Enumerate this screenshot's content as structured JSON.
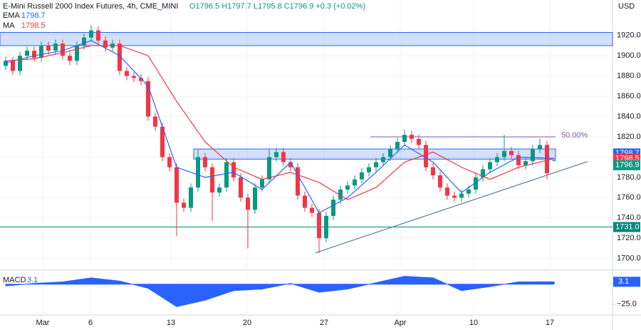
{
  "chart_data": [
    {
      "type": "candlestick",
      "title": "E-Mini Russell 2000 Index Futures, 4h, CME_MINI",
      "subtitle": "O1796.5 H1797.7 L1795.8 C1796.9 +0.3 (+0.02%)",
      "unit": "USD",
      "up_color": "#089981",
      "down_color": "#f23645",
      "x": [
        0,
        1,
        2,
        3,
        4,
        5,
        6,
        7,
        8,
        9,
        10,
        11,
        12,
        13,
        14,
        15,
        16,
        17,
        18,
        19,
        20,
        21,
        22,
        23,
        24,
        25,
        26,
        27,
        28,
        29,
        30,
        31,
        32,
        33,
        34,
        35,
        36,
        37,
        38,
        39,
        40,
        41,
        42,
        43,
        44,
        45,
        46,
        47,
        48,
        49,
        50,
        51,
        52,
        53,
        54,
        55,
        56,
        57,
        58,
        59,
        60,
        61,
        62,
        63,
        64,
        65,
        66,
        67,
        68,
        69,
        70,
        71,
        72,
        73,
        74,
        75,
        76,
        77
      ],
      "open": [
        1890,
        1895,
        1885,
        1900,
        1905,
        1898,
        1910,
        1905,
        1912,
        1900,
        1895,
        1910,
        1918,
        1925,
        1915,
        1908,
        1912,
        1885,
        1880,
        1878,
        1875,
        1840,
        1830,
        1800,
        1790,
        1755,
        1750,
        1770,
        1800,
        1790,
        1765,
        1770,
        1795,
        1780,
        1760,
        1748,
        1770,
        1778,
        1800,
        1805,
        1795,
        1790,
        1762,
        1750,
        1745,
        1720,
        1742,
        1758,
        1768,
        1772,
        1778,
        1785,
        1790,
        1795,
        1800,
        1808,
        1815,
        1822,
        1818,
        1812,
        1790,
        1782,
        1770,
        1762,
        1760,
        1764,
        1768,
        1780,
        1788,
        1795,
        1800,
        1806,
        1802,
        1792,
        1796,
        1808,
        1812,
        1796.5
      ],
      "high": [
        1899,
        1899,
        1904,
        1909,
        1909,
        1914,
        1914,
        1916,
        1916,
        1904,
        1914,
        1922,
        1930,
        1929,
        1919,
        1916,
        1916,
        1889,
        1884,
        1882,
        1879,
        1844,
        1834,
        1804,
        1794,
        1759,
        1774,
        1808,
        1804,
        1794,
        1774,
        1799,
        1799,
        1784,
        1764,
        1774,
        1782,
        1808,
        1809,
        1809,
        1799,
        1794,
        1766,
        1754,
        1749,
        1746,
        1762,
        1772,
        1776,
        1782,
        1789,
        1794,
        1799,
        1804,
        1812,
        1819,
        1827,
        1826,
        1822,
        1816,
        1794,
        1786,
        1774,
        1766,
        1768,
        1772,
        1784,
        1792,
        1799,
        1804,
        1822,
        1810,
        1806,
        1800,
        1812,
        1818,
        1816,
        1797.7
      ],
      "low": [
        1886,
        1881,
        1881,
        1896,
        1894,
        1894,
        1901,
        1901,
        1896,
        1891,
        1891,
        1906,
        1914,
        1911,
        1904,
        1904,
        1881,
        1876,
        1874,
        1871,
        1836,
        1826,
        1796,
        1786,
        1722,
        1746,
        1746,
        1766,
        1786,
        1737,
        1761,
        1766,
        1776,
        1756,
        1710,
        1744,
        1766,
        1774,
        1796,
        1791,
        1786,
        1758,
        1746,
        1741,
        1705,
        1716,
        1738,
        1754,
        1764,
        1768,
        1774,
        1781,
        1786,
        1791,
        1796,
        1804,
        1811,
        1814,
        1808,
        1786,
        1778,
        1766,
        1758,
        1756,
        1756,
        1760,
        1764,
        1776,
        1784,
        1791,
        1796,
        1798,
        1788,
        1788,
        1792,
        1804,
        1778,
        1795.8
      ],
      "close": [
        1895,
        1885,
        1900,
        1905,
        1898,
        1910,
        1905,
        1912,
        1900,
        1895,
        1910,
        1918,
        1925,
        1915,
        1908,
        1912,
        1885,
        1880,
        1878,
        1875,
        1840,
        1830,
        1800,
        1790,
        1755,
        1750,
        1770,
        1800,
        1790,
        1765,
        1770,
        1795,
        1780,
        1760,
        1748,
        1770,
        1778,
        1800,
        1805,
        1795,
        1790,
        1762,
        1750,
        1745,
        1720,
        1742,
        1758,
        1768,
        1772,
        1778,
        1785,
        1790,
        1795,
        1800,
        1808,
        1815,
        1822,
        1818,
        1812,
        1790,
        1782,
        1770,
        1762,
        1760,
        1764,
        1768,
        1780,
        1788,
        1795,
        1800,
        1806,
        1802,
        1792,
        1796,
        1808,
        1812,
        1784,
        1796.9
      ],
      "series": [
        {
          "name": "EMA",
          "color": "#2962ff",
          "x": [
            0,
            4,
            8,
            12,
            16,
            20,
            24,
            28,
            32,
            36,
            40,
            44,
            48,
            52,
            56,
            60,
            64,
            68,
            72,
            77
          ],
          "values": [
            1893,
            1900,
            1905,
            1915,
            1900,
            1870,
            1790,
            1780,
            1785,
            1768,
            1795,
            1745,
            1760,
            1785,
            1812,
            1795,
            1765,
            1785,
            1800,
            1798.7
          ]
        },
        {
          "name": "MA",
          "color": "#f23645",
          "x": [
            0,
            4,
            8,
            12,
            16,
            20,
            24,
            28,
            32,
            36,
            40,
            44,
            48,
            52,
            56,
            60,
            64,
            68,
            72,
            77
          ],
          "values": [
            1895,
            1897,
            1903,
            1910,
            1910,
            1900,
            1855,
            1815,
            1790,
            1778,
            1785,
            1775,
            1758,
            1770,
            1795,
            1805,
            1790,
            1778,
            1790,
            1798.5
          ]
        }
      ],
      "xlim": [
        -0.8,
        85.2
      ],
      "xticks": [
        {
          "value": 5.2,
          "label": "Mar"
        },
        {
          "value": 11.9,
          "label": "6"
        },
        {
          "value": 23.2,
          "label": "13"
        },
        {
          "value": 33.9,
          "label": "20"
        },
        {
          "value": 44.7,
          "label": "27"
        },
        {
          "value": 55.4,
          "label": "Apr"
        },
        {
          "value": 65.7,
          "label": "10"
        },
        {
          "value": 76.4,
          "label": "17"
        }
      ],
      "ylim": [
        1692,
        1955
      ],
      "yticks": [
        {
          "value": 1700,
          "label": "1700.0"
        },
        {
          "value": 1720,
          "label": "1720.0"
        },
        {
          "value": 1740,
          "label": "1740.0"
        },
        {
          "value": 1760,
          "label": "1760.0"
        },
        {
          "value": 1780,
          "label": "1780.0"
        },
        {
          "value": 1800,
          "label": "1800.0"
        },
        {
          "value": 1820,
          "label": "1820.0"
        },
        {
          "value": 1840,
          "label": "1840.0"
        },
        {
          "value": 1860,
          "label": "1860.0"
        },
        {
          "value": 1880,
          "label": "1880.0"
        },
        {
          "value": 1900,
          "label": "1900.0"
        },
        {
          "value": 1920,
          "label": "1920.0"
        }
      ],
      "grid": true,
      "zones": [
        {
          "x1": -0.8,
          "x2": 85.2,
          "y1": 1910,
          "y2": 1923,
          "color": "#2962ff"
        },
        {
          "x1": 26.4,
          "x2": 77.2,
          "y1": 1798,
          "y2": 1808,
          "color": "#2962ff"
        }
      ],
      "support": {
        "value": 1731,
        "label": "1731.0",
        "color": "#00897b"
      },
      "fib": {
        "value": 1820,
        "x1": 51.2,
        "x2": 77.2,
        "label": "50.00%",
        "color": "#7e57c2"
      },
      "trendline": {
        "x1": 43.5,
        "y1": 1705.6,
        "x2": 81.7,
        "y2": 1795.6,
        "color": "#5b7a9a"
      }
    },
    {
      "type": "area",
      "title": "MACD",
      "color": "#2962ff",
      "x": [
        0,
        4,
        8,
        12,
        16,
        20,
        24,
        28,
        32,
        36,
        40,
        44,
        48,
        52,
        56,
        60,
        64,
        68,
        72,
        77
      ],
      "values": [
        -2,
        1,
        3,
        8,
        4,
        -5,
        -28,
        -20,
        -8,
        -6,
        1,
        -10,
        -6,
        2,
        10,
        8,
        -8,
        -3,
        3,
        3.1
      ],
      "value_labels": [
        null,
        null,
        null,
        null,
        null,
        null,
        null,
        null,
        null,
        null,
        null,
        null,
        null,
        null,
        null,
        null,
        null,
        null,
        null,
        "3.1"
      ],
      "xlim": [
        -0.8,
        85.2
      ],
      "ylim": [
        -35,
        15
      ],
      "yticks": [
        {
          "value": -25,
          "label": "−25.0"
        }
      ]
    }
  ]
}
